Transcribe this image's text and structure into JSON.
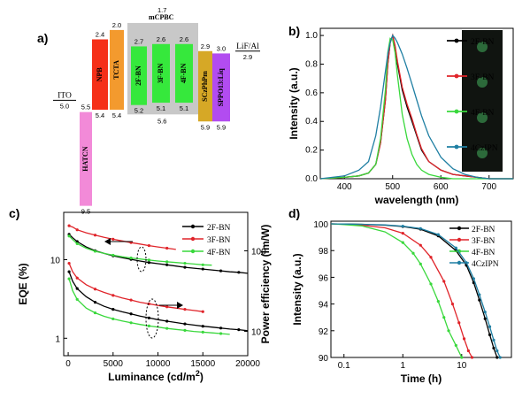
{
  "chart_data": [
    {
      "panel": "a)",
      "type": "energy-level-diagram",
      "group_label": "mCPBC",
      "group_level_top": "1.7",
      "group_level_bottom": "5.6",
      "layers": [
        {
          "name": "ITO",
          "top": null,
          "bottom": "5.0",
          "color": "none"
        },
        {
          "name": "HATCN",
          "top": "5.5",
          "bottom": "9.5",
          "color": "#f28ad8"
        },
        {
          "name": "NPB",
          "top": "2.4",
          "bottom": "5.4",
          "color": "#f53018"
        },
        {
          "name": "TCTA",
          "top": "2.0",
          "bottom": "5.4",
          "color": "#f39a2e"
        },
        {
          "name": "2F-BN",
          "top": "2.7",
          "bottom": "5.2",
          "color": "#36e83c"
        },
        {
          "name": "3F-BN",
          "top": "2.6",
          "bottom": "5.1",
          "color": "#36e83c"
        },
        {
          "name": "4F-BN",
          "top": "2.6",
          "bottom": "5.1",
          "color": "#36e83c"
        },
        {
          "name": "SCzPhPm",
          "top": "2.9",
          "bottom": "5.9",
          "color": "#d6a826"
        },
        {
          "name": "SPPO13:Liq",
          "top": "3.0",
          "bottom": "5.9",
          "color": "#b24cf0"
        },
        {
          "name": "LiF/Al",
          "top": "2.9",
          "bottom": null,
          "color": "none"
        }
      ]
    },
    {
      "panel": "b)",
      "type": "line",
      "xlabel": "wavelength (nm)",
      "ylabel": "Intensity (a.u.)",
      "xlim": [
        350,
        750
      ],
      "ylim": [
        0,
        1.05
      ],
      "xticks": [
        400,
        500,
        600,
        700
      ],
      "yticks": [
        0.0,
        0.2,
        0.4,
        0.6,
        0.8,
        1.0
      ],
      "x": [
        350,
        400,
        430,
        450,
        465,
        475,
        485,
        490,
        495,
        500,
        505,
        510,
        520,
        530,
        540,
        550,
        560,
        575,
        600,
        625,
        650,
        675,
        700,
        750
      ],
      "series": [
        {
          "name": "2F-BN",
          "color": "#000000",
          "values": [
            0.0,
            0.01,
            0.02,
            0.04,
            0.1,
            0.25,
            0.55,
            0.8,
            0.95,
            1.0,
            0.92,
            0.8,
            0.62,
            0.5,
            0.4,
            0.3,
            0.2,
            0.12,
            0.06,
            0.03,
            0.02,
            0.01,
            0.0,
            0.0
          ]
        },
        {
          "name": "3F-BN",
          "color": "#e0242a",
          "values": [
            0.0,
            0.01,
            0.02,
            0.04,
            0.1,
            0.25,
            0.55,
            0.8,
            0.95,
            1.0,
            0.93,
            0.82,
            0.64,
            0.52,
            0.42,
            0.31,
            0.21,
            0.12,
            0.06,
            0.03,
            0.02,
            0.01,
            0.0,
            0.0
          ]
        },
        {
          "name": "4F-BN",
          "color": "#39d83c",
          "values": [
            0.0,
            0.01,
            0.02,
            0.04,
            0.1,
            0.28,
            0.62,
            0.88,
            0.98,
            0.97,
            0.88,
            0.72,
            0.45,
            0.28,
            0.17,
            0.1,
            0.06,
            0.03,
            0.01,
            0.0,
            0.0,
            0.0,
            0.0,
            0.0
          ]
        },
        {
          "name": "4CzIPN",
          "color": "#1f7fa3",
          "values": [
            0.0,
            0.02,
            0.06,
            0.12,
            0.3,
            0.5,
            0.75,
            0.87,
            0.95,
            1.0,
            0.98,
            0.95,
            0.87,
            0.77,
            0.66,
            0.55,
            0.44,
            0.3,
            0.15,
            0.07,
            0.03,
            0.01,
            0.0,
            0.0
          ]
        }
      ]
    },
    {
      "panel": "c)",
      "type": "line",
      "xlabel": "Luminance (cd/m",
      "xlabel_sup": "2",
      "xlabel_end": ")",
      "ylabel": "EQE (%)",
      "ylabel_right": "Power efficiency (lm/W)",
      "xlim": [
        -500,
        20000
      ],
      "xticks": [
        0,
        5000,
        10000,
        15000,
        20000
      ],
      "yticks_left": [
        "1",
        "10"
      ],
      "yticks_right": [
        "10",
        "100"
      ],
      "x": [
        100,
        500,
        1000,
        2000,
        3000,
        4000,
        5000,
        6000,
        7000,
        8000,
        9000,
        10000,
        11000,
        12000,
        13000,
        14000,
        15000,
        16000,
        17000,
        18000,
        19000,
        20000
      ],
      "series": [
        {
          "name": "2F-BN",
          "axis": "eqe",
          "color": "#000000",
          "values": [
            21,
            19,
            17,
            14.5,
            13,
            12,
            11.2,
            10.6,
            10.1,
            9.6,
            9.2,
            8.9,
            8.6,
            8.3,
            8.0,
            7.8,
            7.6,
            7.4,
            7.2,
            7.0,
            6.9,
            6.7
          ]
        },
        {
          "name": "3F-BN",
          "axis": "eqe",
          "color": "#e0242a",
          "values": [
            27,
            26,
            24,
            22,
            20.5,
            19.2,
            18.2,
            17.3,
            16.5,
            15.8,
            15.1,
            14.5,
            14.0,
            13.5,
            null,
            null,
            null,
            null,
            null,
            null,
            null,
            null
          ]
        },
        {
          "name": "4F-BN",
          "axis": "eqe",
          "color": "#39d83c",
          "values": [
            20,
            18,
            16,
            14,
            12.8,
            12,
            11.4,
            10.9,
            10.5,
            10.2,
            9.9,
            9.6,
            9.4,
            9.2,
            9.0,
            8.8,
            8.6,
            8.5,
            null,
            null,
            null,
            null
          ]
        },
        {
          "name": "2F-BN",
          "axis": "pe",
          "color": "#000000",
          "values": [
            55,
            42,
            34,
            27,
            23,
            20.5,
            18.8,
            17.5,
            16.5,
            15.5,
            14.7,
            14,
            13.4,
            12.9,
            12.4,
            12,
            11.6,
            11.3,
            11,
            10.7,
            10.5,
            10.2
          ]
        },
        {
          "name": "3F-BN",
          "axis": "pe",
          "color": "#e0242a",
          "values": [
            70,
            55,
            46,
            38,
            33.5,
            30.5,
            28,
            26,
            24.5,
            23,
            22,
            21,
            20.2,
            19.5,
            18.8,
            18.2,
            17.6,
            null,
            null,
            null,
            null,
            null
          ]
        },
        {
          "name": "4F-BN",
          "axis": "pe",
          "color": "#39d83c",
          "values": [
            45,
            32,
            25,
            19.5,
            17,
            15.4,
            14.3,
            13.5,
            12.8,
            12.2,
            11.7,
            11.3,
            10.9,
            10.6,
            10.3,
            10.0,
            9.8,
            9.6,
            9.4,
            9.2,
            null,
            null
          ]
        }
      ]
    },
    {
      "panel": "d)",
      "type": "line",
      "xlabel": "Time (h)",
      "ylabel": "Intensity (a.u.)",
      "xscale": "log",
      "xlim": [
        0.06,
        70
      ],
      "ylim": [
        90,
        100.2
      ],
      "xticks": [
        "0.1",
        "1",
        "10"
      ],
      "yticks": [
        90,
        92,
        94,
        96,
        98,
        100
      ],
      "series": [
        {
          "name": "2F-BN",
          "color": "#000000",
          "x": [
            0.06,
            0.1,
            0.2,
            0.5,
            1,
            2,
            4,
            8,
            12,
            16,
            20,
            25,
            30,
            35,
            40
          ],
          "values": [
            100,
            99.99,
            99.97,
            99.9,
            99.8,
            99.6,
            99.1,
            98.0,
            96.9,
            95.6,
            94.3,
            92.9,
            91.7,
            90.7,
            90.0
          ]
        },
        {
          "name": "3F-BN",
          "color": "#e0242a",
          "x": [
            0.06,
            0.1,
            0.2,
            0.5,
            1,
            2,
            3,
            5,
            7,
            9,
            11,
            13,
            15
          ],
          "values": [
            100,
            99.97,
            99.9,
            99.7,
            99.3,
            98.4,
            97.5,
            95.7,
            94.0,
            92.6,
            91.4,
            90.5,
            90.0
          ]
        },
        {
          "name": "4F-BN",
          "color": "#39d83c",
          "x": [
            0.06,
            0.1,
            0.2,
            0.5,
            1,
            1.5,
            2,
            3,
            4,
            5,
            6,
            8,
            10
          ],
          "values": [
            100,
            99.95,
            99.85,
            99.4,
            98.6,
            97.8,
            97.0,
            95.5,
            94.2,
            93.0,
            92.0,
            90.9,
            90.0
          ]
        },
        {
          "name": "4CzIPN",
          "color": "#1f7fa3",
          "x": [
            0.06,
            0.1,
            0.2,
            0.5,
            1,
            2,
            4,
            8,
            12,
            16,
            20,
            25,
            30,
            35,
            40,
            45
          ],
          "values": [
            100,
            99.99,
            99.97,
            99.92,
            99.83,
            99.65,
            99.2,
            98.2,
            97.1,
            95.9,
            94.7,
            93.4,
            92.3,
            91.3,
            90.5,
            90.0
          ]
        }
      ]
    }
  ]
}
